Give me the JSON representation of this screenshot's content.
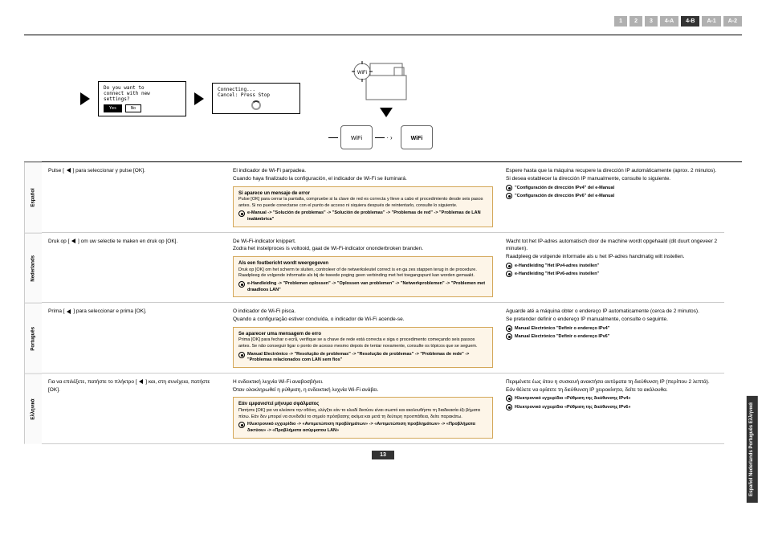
{
  "header": {
    "tabs": [
      "1",
      "2",
      "3",
      "4-A",
      "4-B",
      "A-1",
      "A-2"
    ],
    "active_index": 4
  },
  "diagram": {
    "screen1": {
      "line1": "Do you want to",
      "line2": "connect with new",
      "line3": "settings?",
      "btn_yes": "Yes",
      "btn_no": "No"
    },
    "screen2": {
      "line1": "Connecting...",
      "line2": "Cancel: Press Stop"
    },
    "wifi_label": "Wi-Fi"
  },
  "languages": [
    {
      "label": "Español",
      "col1": "Pulse [ ◀ ] para seleccionar y pulse [OK].",
      "col2_main": "El indicador de Wi-Fi parpadea.",
      "col2_sub": "Cuando haya finalizado la configuración, el indicador de Wi-Fi se iluminará.",
      "error_title": "Si aparece un mensaje de error",
      "error_body": "Pulse [OK] para cerrar la pantalla, compruebe si la clave de red es correcta y lleve a cabo el procedimiento desde seis pasos antes. Si no puede conectarse con el punto de acceso ni siquiera después de reintentarlo, consulte lo siguiente.",
      "error_link": "e-Manual -> \"Solución de problemas\" -> \"Solución de problemas\" -> \"Problemas de red\" -> \"Problemas de LAN inalámbrica\"",
      "col3_main": "Espere hasta que la máquina recupere la dirección IP automáticamente (aprox. 2 minutos).",
      "col3_sub": "Si desea establecer la dirección IP manualmente, consulte lo siguiente.",
      "col3_link1": "\"Configuración de dirección IPv4\" del e-Manual",
      "col3_link2": "\"Configuración de dirección IPv6\" del e-Manual"
    },
    {
      "label": "Nederlands",
      "col1": "Druk op [ ◀ ] om uw selectie te maken en druk op [OK].",
      "col2_main": "De Wi-Fi-indicator knippert.",
      "col2_sub": "Zodra het instelproces is voltooid, gaat de Wi-Fi-indicator ononderbroken branden.",
      "error_title": "Als een foutbericht wordt weergegeven",
      "error_body": "Druk op [OK] om het scherm te sluiten, controleer of de netwerksleutel correct is en ga zes stappen terug in de procedure. Raadpleeg de volgende informatie als bij de tweede poging geen verbinding met het toegangspunt kan worden gemaakt.",
      "error_link": "e-Handleiding -> \"Problemen oplossen\" -> \"Oplossen van problemen\" -> \"Netwerkproblemen\" -> \"Problemen met draadloos LAN\"",
      "col3_main": "Wacht tot het IP-adres automatisch door de machine wordt opgehaald (dit duurt ongeveer 2 minuten).",
      "col3_sub": "Raadpleeg de volgende informatie als u het IP-adres handmatig wilt instellen.",
      "col3_link1": "e-Handleiding \"Het IPv4-adres instellen\"",
      "col3_link2": "e-Handleiding \"Het IPv6-adres instellen\""
    },
    {
      "label": "Português",
      "col1": "Prima [ ◀ ] para seleccionar e prima [OK].",
      "col2_main": "O indicador de Wi-Fi pisca.",
      "col2_sub": "Quando a configuração estiver concluída, o indicador de Wi-Fi acende-se.",
      "error_title": "Se aparecer uma mensagem de erro",
      "error_body": "Prima [OK] para fechar o ecrã, verifique se a chave de rede está correcta e siga o procedimento começando seis passos antes. Se não conseguir ligar o ponto de acesso mesmo depois de tentar novamente, consulte os tópicos que se seguem.",
      "error_link": "Manual Electrónico -> \"Resolução de problemas\" -> \"Resolução de problemas\" -> \"Problemas de rede\" -> \"Problemas relacionados com LAN sem fios\"",
      "col3_main": "Aguarde até a máquina obter o endereço IP automaticamente (cerca de 2 minutos).",
      "col3_sub": "Se pretender definir o endereço IP manualmente, consulte o seguinte.",
      "col3_link1": "Manual Electrónico \"Definir o endereço IPv4\"",
      "col3_link2": "Manual Electrónico \"Definir o endereço IPv6\""
    },
    {
      "label": "Ελληνικά",
      "col1": "Για να επιλέξετε, πατήστε το πλήκτρο [ ◀ ] και, στη συνέχεια, πατήστε [OK].",
      "col2_main": "Η ενδεικτική λυχνία Wi-Fi αναβοσβήνει.",
      "col2_sub": "Όταν ολοκληρωθεί η ρύθμιση, η ενδεικτική λυχνία Wi-Fi ανάβει.",
      "error_title": "Εάν εμφανιστεί μήνυμα σφάλματος",
      "error_body": "Πατήστε [OK] για να κλείσετε την οθόνη, ελέγξτε εάν το κλειδί δικτύου είναι σωστό και ακολουθήστε τη διαδικασία έξι βήματα πίσω. Εάν δεν μπορεί να συνδεθεί το σημείο πρόσβασης ακόμα και μετά τη δεύτερη προσπάθεια, δείτε παρακάτω.",
      "error_link": "Ηλεκτρονικό εγχειρίδιο -> «Αντιμετώπιση προβλημάτων» -> «Αντιμετώπιση προβλημάτων» -> «Προβλήματα δικτύου» -> «Προβλήματα ασύρματου LAN»",
      "col3_main": "Περιμένετε έως ότου η συσκευή ανακτήσει αυτόματα τη διεύθυνση IP (περίπου 2 λεπτά).",
      "col3_sub": "Εάν θέλετε να ορίσετε τη διεύθυνση IP χειροκίνητα, δείτε τα ακόλουθα.",
      "col3_link1": "Ηλεκτρονικό εγχειρίδιο «Ρύθμιση της διεύθυνσης IPv4»",
      "col3_link2": "Ηλεκτρονικό εγχειρίδιο «Ρύθμιση της διεύθυνσης IPv6»"
    }
  ],
  "page_number": "13",
  "side_tab": "Español Nederlands\nPortuguês Ελληνικά"
}
